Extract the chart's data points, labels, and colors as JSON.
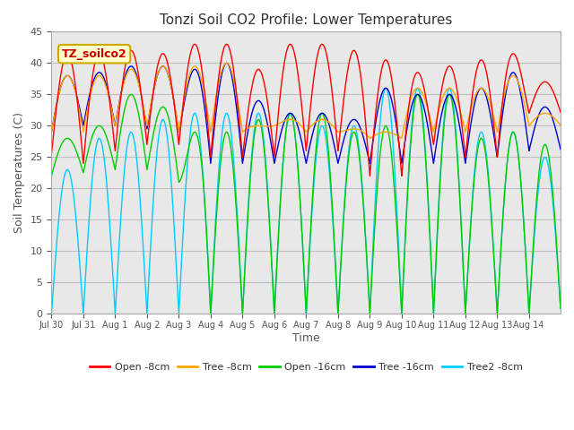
{
  "title": "Tonzi Soil CO2 Profile: Lower Temperatures",
  "xlabel": "Time",
  "ylabel": "Soil Temperatures (C)",
  "ylim": [
    0,
    45
  ],
  "series_labels": [
    "Open -8cm",
    "Tree -8cm",
    "Open -16cm",
    "Tree -16cm",
    "Tree2 -8cm"
  ],
  "series_colors": [
    "#ff0000",
    "#ffa500",
    "#00cc00",
    "#0000cc",
    "#00ccff"
  ],
  "watermark_text": "TZ_soilco2",
  "plot_background": "#e8e8e8",
  "xtick_labels": [
    "Jul 30",
    "Jul 31",
    "Aug 1",
    "Aug 2",
    "Aug 3",
    "Aug 4",
    "Aug 5",
    "Aug 6",
    "Aug 7",
    "Aug 8",
    "Aug 9",
    "Aug 10",
    "Aug 11",
    "Aug 12",
    "Aug 13",
    "Aug 14"
  ],
  "peaks_open8": [
    41.5,
    41.5,
    42.0,
    41.5,
    43.0,
    43.0,
    39.0,
    43.0,
    43.0,
    42.0,
    40.5,
    38.5,
    39.5,
    40.5,
    41.5,
    37.0
  ],
  "peaks_tree8": [
    38.0,
    38.0,
    39.0,
    39.5,
    39.5,
    40.0,
    30.0,
    31.0,
    31.0,
    29.5,
    29.0,
    36.0,
    36.0,
    36.0,
    38.0,
    32.0
  ],
  "peaks_open16": [
    28.0,
    30.0,
    35.0,
    33.0,
    29.0,
    29.0,
    31.0,
    32.0,
    32.0,
    29.0,
    30.0,
    35.0,
    35.0,
    28.0,
    29.0,
    27.0
  ],
  "peaks_tree16": [
    38.0,
    38.5,
    39.5,
    39.5,
    39.0,
    40.0,
    34.0,
    32.0,
    32.0,
    31.0,
    36.0,
    35.0,
    35.0,
    36.0,
    38.5,
    33.0
  ],
  "peaks_tree2_8": [
    23.0,
    28.0,
    29.0,
    31.0,
    32.0,
    32.0,
    32.0,
    32.0,
    30.0,
    30.0,
    36.0,
    36.0,
    36.0,
    29.0,
    29.0,
    25.0
  ],
  "val_open8": [
    25.5,
    24.0,
    26.0,
    27.0,
    27.0,
    25.0,
    25.0,
    25.0,
    26.0,
    26.0,
    22.0,
    22.0,
    27.0,
    25.0,
    25.0,
    32.0,
    32.0
  ],
  "val_tree8": [
    29.0,
    29.0,
    30.0,
    30.0,
    29.0,
    29.0,
    29.0,
    30.0,
    29.0,
    29.0,
    28.0,
    28.0,
    29.0,
    29.0,
    29.0,
    30.0,
    30.0
  ],
  "val_open16": [
    22.0,
    22.5,
    23.0,
    23.0,
    21.0,
    0.0,
    0.0,
    0.0,
    0.0,
    0.0,
    0.0,
    0.0,
    0.0,
    0.0,
    0.0,
    0.0,
    0.0
  ],
  "val_tree16": [
    29.0,
    30.0,
    30.0,
    29.5,
    29.0,
    24.0,
    24.0,
    24.0,
    24.0,
    24.0,
    24.0,
    24.0,
    24.0,
    24.0,
    25.0,
    26.0,
    26.0
  ],
  "val_tree2_8": [
    0.0,
    0.0,
    0.0,
    0.0,
    0.0,
    0.0,
    0.0,
    0.0,
    0.0,
    0.0,
    0.0,
    0.0,
    0.0,
    0.0,
    0.0,
    0.0,
    0.0
  ]
}
